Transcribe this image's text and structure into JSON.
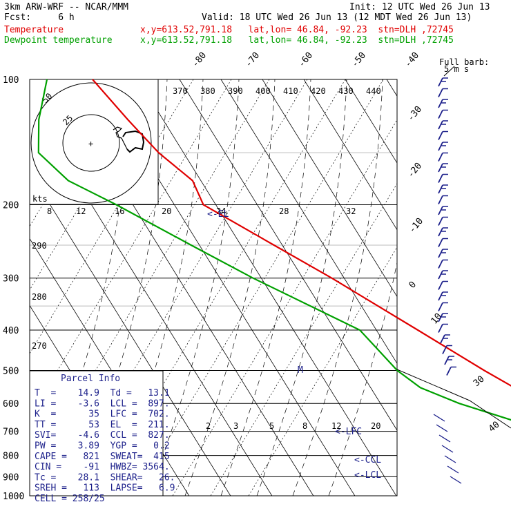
{
  "header": {
    "model": "3km ARW-WRF -- NCAR/MMM",
    "init": "Init: 12 UTC Wed 26 Jun 13",
    "fcst": "Fcst:     6 h",
    "valid": "Valid: 18 UTC Wed 26 Jun 13 (12 MDT Wed 26 Jun 13)",
    "temp_label": "Temperature",
    "temp_loc": "x,y=613.52,791.18   lat,lon= 46.84, -92.23  stn=DLH ,72745",
    "dew_label": "Dewpoint temperature",
    "dew_loc": "x,y=613.52,791.18   lat,lon= 46.84, -92.23  stn=DLH ,72745"
  },
  "colors": {
    "temperature": "#e00000",
    "dewpoint": "#00a000",
    "text_blue": "#1b1f8a",
    "wind": "#1b1f8a"
  },
  "chart_data": {
    "type": "line",
    "pressure_levels": [
      "100",
      "200",
      "300",
      "400",
      "500",
      "600",
      "700",
      "800",
      "900",
      "1000"
    ],
    "temp_ticks": [
      "-80",
      "-70",
      "-60",
      "-50",
      "-40",
      "-30",
      "-20",
      "-10",
      "0",
      "10"
    ],
    "theta_e_labels": [
      "370",
      "380",
      "390",
      "400",
      "410",
      "420",
      "430",
      "440"
    ],
    "theta_labels": [
      "290",
      "280",
      "270"
    ],
    "mixing_ratio_labels": [
      "8",
      "12",
      "16",
      "20",
      "24",
      "28",
      "32"
    ],
    "mixing_ratio_low_labels": [
      "2",
      "3",
      "5",
      "8",
      "12",
      "20"
    ],
    "barb_note": "Full barb:",
    "barb_note2": "5 m s",
    "speed_labels": [
      "30",
      "40"
    ],
    "annotations": [
      "<-EL",
      "<-LFC",
      "<-CCL",
      "<-LCL",
      "M"
    ],
    "hodograph": {
      "unit": "kts",
      "rings": [
        "25",
        "50"
      ]
    },
    "series": [
      {
        "name": "Temperature",
        "points": [
          [
            100,
            -61
          ],
          [
            125,
            -58.5
          ],
          [
            150,
            -56
          ],
          [
            175,
            -52
          ],
          [
            200,
            -53
          ],
          [
            250,
            -42
          ],
          [
            300,
            -33
          ],
          [
            400,
            -20
          ],
          [
            500,
            -10
          ],
          [
            600,
            -1
          ],
          [
            700,
            6
          ],
          [
            800,
            13
          ],
          [
            900,
            20
          ],
          [
            950,
            16
          ]
        ]
      },
      {
        "name": "Dewpoint temperature",
        "points": [
          [
            100,
            -72
          ],
          [
            125,
            -80
          ],
          [
            150,
            -85
          ],
          [
            175,
            -82
          ],
          [
            200,
            -74
          ],
          [
            250,
            -62
          ],
          [
            300,
            -52
          ],
          [
            400,
            -34
          ],
          [
            500,
            -31
          ],
          [
            550,
            -28
          ],
          [
            600,
            -21
          ],
          [
            700,
            -4
          ],
          [
            800,
            8
          ],
          [
            900,
            15
          ],
          [
            950,
            4
          ]
        ]
      }
    ]
  },
  "parcel": {
    "title": "Parcel Info",
    "rows": [
      "T  =    14.9  Td =   13.1",
      "LI =    -3.6  LCL =  897.",
      "K  =      35  LFC =  702.",
      "TT =      53  EL  =  211.",
      "SVI=    -4.6  CCL =  827.",
      "PW =    3.89  YGP =   0.2",
      "CAPE =   821  SWEAT=  415",
      "CIN =    -91  HWBZ= 3564.",
      "Tc =    28.1  SHEAR=   26.",
      "SREH =   113  LAPSE=   6.9",
      "CELL = 258/25"
    ]
  }
}
